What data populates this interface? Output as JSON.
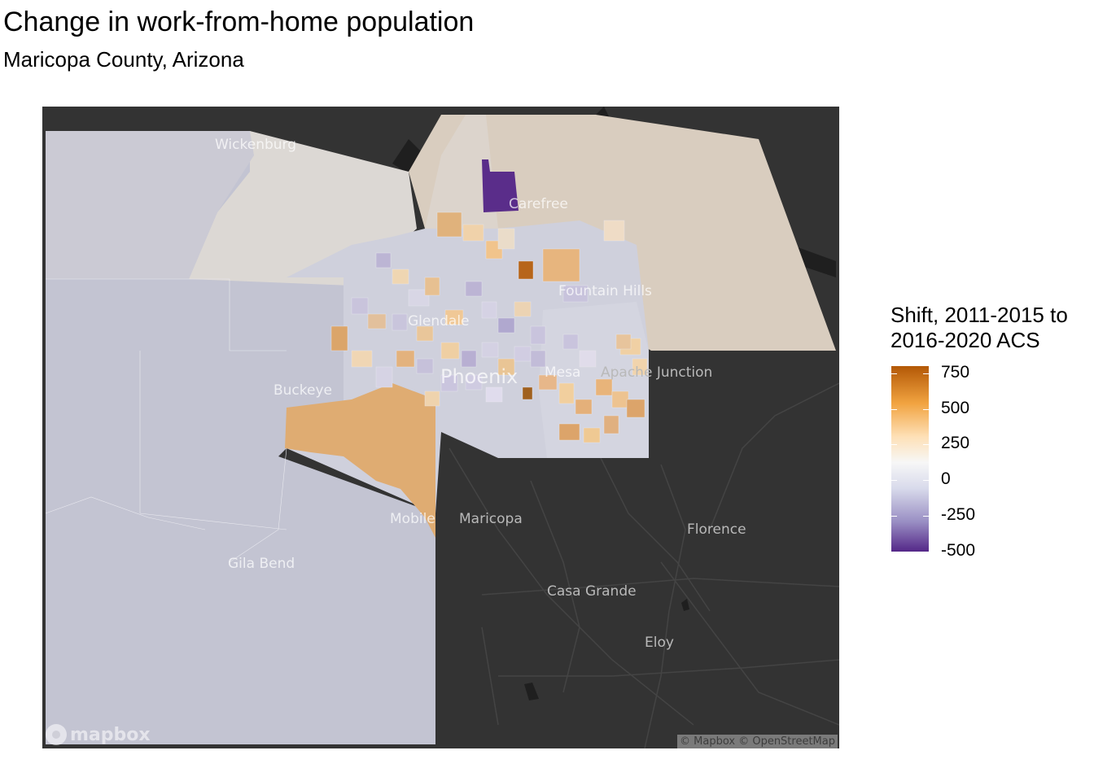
{
  "title": "Change in work-from-home population",
  "subtitle": "Maricopa County, Arizona",
  "legend": {
    "title_line1": "Shift, 2011-2015 to",
    "title_line2": "2016-2020 ACS",
    "ticks": [
      "750",
      "500",
      "250",
      "0",
      "-250",
      "-500"
    ],
    "tick_values": [
      750,
      500,
      250,
      0,
      -250,
      -500
    ],
    "range": [
      -500,
      800
    ],
    "colors": {
      "max": "#b35806",
      "high": "#f1a340",
      "mid_high": "#fee0b6",
      "zero": "#f7f7f7",
      "mid_low": "#d8daeb",
      "low": "#998ec3",
      "min": "#542788"
    }
  },
  "basemap": {
    "places": [
      {
        "name": "Wickenburg",
        "style": "light"
      },
      {
        "name": "Carefree",
        "style": "light"
      },
      {
        "name": "Fountain Hills",
        "style": "light"
      },
      {
        "name": "Glendale",
        "style": "light"
      },
      {
        "name": "Phoenix",
        "style": "light"
      },
      {
        "name": "Mesa",
        "style": "light"
      },
      {
        "name": "Apache Junction",
        "style": "dark"
      },
      {
        "name": "Buckeye",
        "style": "light"
      },
      {
        "name": "Mobile",
        "style": "light"
      },
      {
        "name": "Maricopa",
        "style": "dark"
      },
      {
        "name": "Florence",
        "style": "dark"
      },
      {
        "name": "Gila Bend",
        "style": "light"
      },
      {
        "name": "Casa Grande",
        "style": "dark"
      },
      {
        "name": "Eloy",
        "style": "dark"
      }
    ],
    "logo": "mapbox",
    "attribution": "© Mapbox © OpenStreetMap"
  }
}
